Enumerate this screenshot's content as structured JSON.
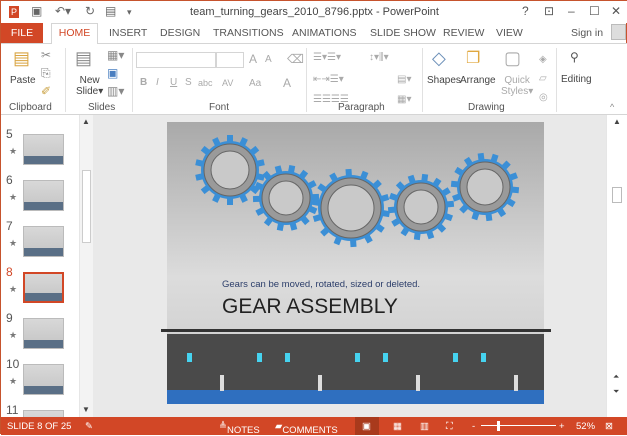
{
  "window": {
    "title": "team_turning_gears_2010_8796.pptx - PowerPoint",
    "help": "?",
    "accent": "#d24726"
  },
  "tabs": {
    "file": "FILE",
    "items": [
      "HOME",
      "INSERT",
      "DESIGN",
      "TRANSITIONS",
      "ANIMATIONS",
      "SLIDE SHOW",
      "REVIEW",
      "VIEW"
    ],
    "sign_in": "Sign in"
  },
  "ribbon": {
    "clipboard": {
      "label": "Clipboard",
      "paste": "Paste"
    },
    "slides": {
      "label": "Slides",
      "new_slide_1": "New",
      "new_slide_2": "Slide"
    },
    "font": {
      "label": "Font",
      "bold": "B",
      "italic": "I",
      "underline": "U",
      "shadow": "S",
      "strike": "abc",
      "spacing": "AV",
      "case": "Aa",
      "color": "A",
      "grow": "A",
      "shrink": "A"
    },
    "paragraph": {
      "label": "Paragraph"
    },
    "drawing": {
      "label": "Drawing",
      "shapes": "Shapes",
      "arrange": "Arrange",
      "quick_styles_1": "Quick",
      "quick_styles_2": "Styles"
    },
    "editing": {
      "label": "Editing"
    }
  },
  "thumbnails": [
    {
      "num": "5"
    },
    {
      "num": "6"
    },
    {
      "num": "7"
    },
    {
      "num": "8",
      "selected": true
    },
    {
      "num": "9"
    },
    {
      "num": "10"
    },
    {
      "num": "11"
    }
  ],
  "slide": {
    "subtitle": "Gears can be moved, rotated, sized or deleted.",
    "title": "GEAR ASSEMBLY",
    "gear_color": "#3b8fd6"
  },
  "status": {
    "slide": "SLIDE 8 OF 25",
    "notes": "NOTES",
    "comments": "COMMENTS",
    "zoom": "52%",
    "zoom_minus": "-",
    "zoom_plus": "+"
  }
}
